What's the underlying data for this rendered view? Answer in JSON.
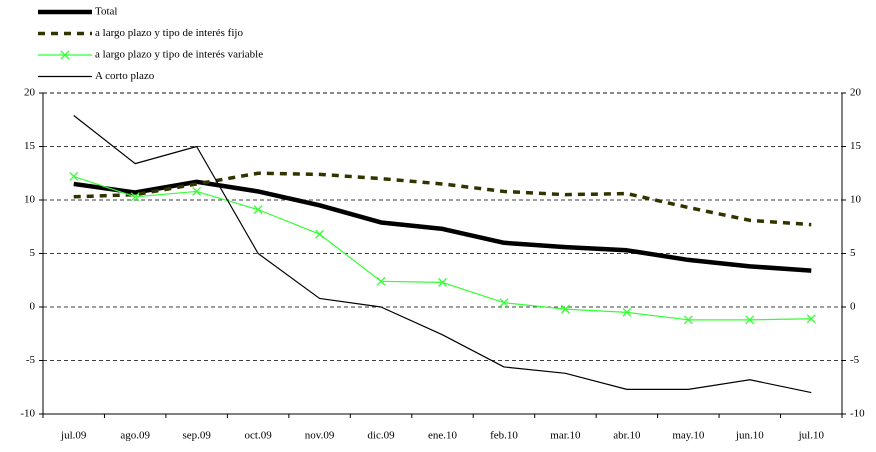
{
  "chart_data": {
    "type": "line",
    "categories": [
      "jul.09",
      "ago.09",
      "sep.09",
      "oct.09",
      "nov.09",
      "dic.09",
      "ene.10",
      "feb.10",
      "mar.10",
      "abr.10",
      "may.10",
      "jun.10",
      "jul.10"
    ],
    "series": [
      {
        "name": "Total",
        "color": "#000000",
        "values": [
          11.5,
          10.7,
          11.7,
          10.8,
          9.5,
          7.9,
          7.3,
          6.0,
          5.6,
          5.3,
          4.4,
          3.8,
          3.4
        ]
      },
      {
        "name": "a largo plazo y tipo de interés fijo",
        "color": "#333300",
        "values": [
          10.3,
          10.5,
          11.5,
          12.5,
          12.4,
          12.0,
          11.5,
          10.8,
          10.5,
          10.6,
          9.3,
          8.1,
          7.7
        ]
      },
      {
        "name": "a largo plazo y tipo de interés variable",
        "color": "#33ff33",
        "values": [
          12.2,
          10.3,
          10.8,
          9.1,
          6.8,
          2.4,
          2.3,
          0.4,
          -0.2,
          -0.5,
          -1.2,
          -1.2,
          -1.1
        ]
      },
      {
        "name": "A corto plazo",
        "color": "#000000",
        "values": [
          17.9,
          13.4,
          15.0,
          5.0,
          0.8,
          0.0,
          -2.6,
          -5.6,
          -6.2,
          -7.7,
          -7.7,
          -6.8,
          -8.0
        ]
      }
    ],
    "ylim": [
      -10,
      20
    ],
    "yticks": [
      -10,
      -5,
      0,
      5,
      10,
      15,
      20
    ],
    "y2lim": [
      -10,
      20
    ],
    "y2ticks": [
      -10,
      -5,
      0,
      5,
      10,
      15,
      20
    ],
    "grid": true,
    "legend": "top-left"
  }
}
